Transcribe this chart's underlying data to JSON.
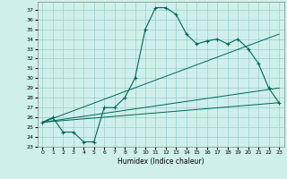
{
  "title": "",
  "xlabel": "Humidex (Indice chaleur)",
  "bg_color": "#cff0ea",
  "grid_color": "#99cccc",
  "line_color": "#006655",
  "xlim": [
    -0.5,
    23.5
  ],
  "ylim": [
    23,
    37.8
  ],
  "x_ticks": [
    0,
    1,
    2,
    3,
    4,
    5,
    6,
    7,
    8,
    9,
    10,
    11,
    12,
    13,
    14,
    15,
    16,
    17,
    18,
    19,
    20,
    21,
    22,
    23
  ],
  "y_ticks": [
    23,
    24,
    25,
    26,
    27,
    28,
    29,
    30,
    31,
    32,
    33,
    34,
    35,
    36,
    37
  ],
  "main_series_x": [
    0,
    1,
    2,
    3,
    4,
    5,
    6,
    7,
    8,
    9,
    10,
    11,
    12,
    13,
    14,
    15,
    16,
    17,
    18,
    19,
    20,
    21,
    22,
    23
  ],
  "main_series_y": [
    25.5,
    26.0,
    24.5,
    24.5,
    23.5,
    23.5,
    27.0,
    27.0,
    28.0,
    30.0,
    35.0,
    37.2,
    37.2,
    36.5,
    34.5,
    33.5,
    33.8,
    34.0,
    33.5,
    34.0,
    33.0,
    31.5,
    29.0,
    27.5
  ],
  "line1_x": [
    0,
    23
  ],
  "line1_y": [
    25.5,
    29.0
  ],
  "line2_x": [
    0,
    23
  ],
  "line2_y": [
    25.5,
    34.5
  ],
  "line3_x": [
    0,
    23
  ],
  "line3_y": [
    25.5,
    27.5
  ]
}
